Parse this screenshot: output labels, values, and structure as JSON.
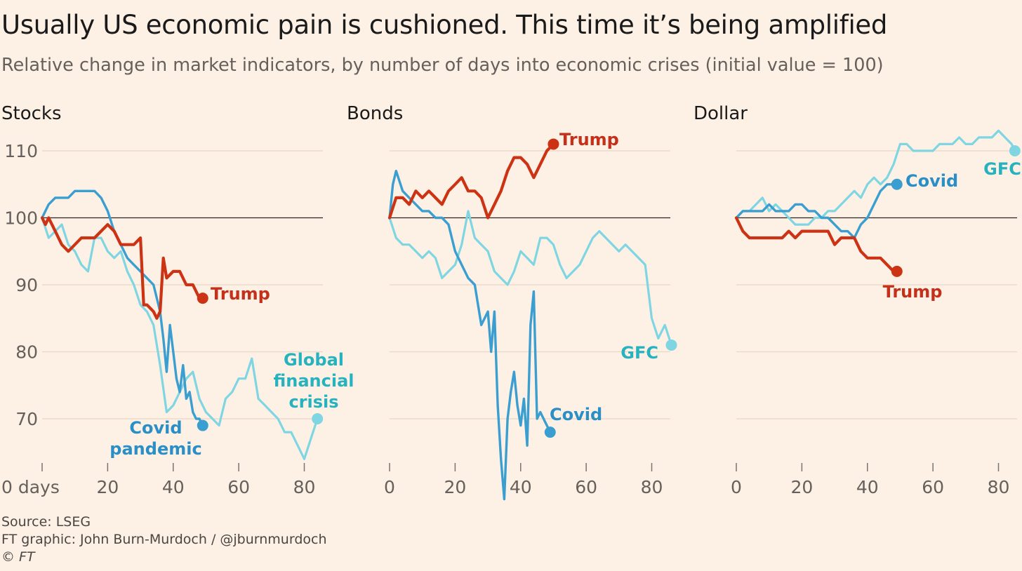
{
  "header": {
    "title": "Usually US economic pain is cushioned. This time it’s being amplified",
    "subtitle": "Relative change in market indicators, by number of days into economic crises (initial value = 100)"
  },
  "footer": {
    "source": "Source: LSEG",
    "credit": "FT graphic: John Burn-Murdoch / @jburnmurdoch",
    "copyright": "© FT"
  },
  "colors": {
    "trump": "#cc3314",
    "covid": "#3a9fd0",
    "gfc": "#7fd6e2",
    "gfc_label": "#27b2bf",
    "covid_label": "#2a8fc6",
    "trump_label": "#c4301a",
    "grid": "#ead7c8",
    "baseline": "#2b2623",
    "tick_text": "#66605c"
  },
  "chart_data": [
    {
      "type": "line",
      "title": "Stocks",
      "xlim": [
        0,
        85
      ],
      "ylim": [
        63,
        112
      ],
      "xticks": [
        0,
        20,
        40,
        60,
        80
      ],
      "xtick_labels": [
        "0 days",
        "20",
        "40",
        "60",
        "80"
      ],
      "yticks": [
        70,
        80,
        90,
        100,
        110
      ],
      "ytick_labels": [
        "70",
        "80",
        "90",
        "100",
        "110"
      ],
      "baseline": 100,
      "grid": true,
      "series": [
        {
          "key": "gfc",
          "name": "Global financial crisis",
          "label_lines": [
            "Global",
            "financial",
            "crisis"
          ],
          "x": [
            0,
            2,
            4,
            6,
            8,
            10,
            12,
            14,
            16,
            18,
            20,
            22,
            24,
            26,
            28,
            30,
            32,
            34,
            36,
            38,
            40,
            42,
            44,
            46,
            48,
            50,
            52,
            54,
            56,
            58,
            60,
            62,
            64,
            66,
            68,
            70,
            72,
            74,
            76,
            78,
            80,
            82,
            84
          ],
          "y": [
            100,
            97,
            98,
            99,
            96,
            95,
            93,
            92,
            97,
            97,
            95,
            94,
            95,
            92,
            90,
            87,
            86,
            84,
            78,
            71,
            72,
            74,
            76,
            77,
            73,
            71,
            70,
            69,
            73,
            74,
            76,
            76,
            79,
            73,
            72,
            71,
            70,
            68,
            68,
            66,
            64,
            67,
            70
          ]
        },
        {
          "key": "covid",
          "name": "Covid pandemic",
          "label_lines": [
            "Covid",
            "pandemic"
          ],
          "x": [
            0,
            2,
            4,
            6,
            8,
            10,
            12,
            14,
            16,
            18,
            20,
            22,
            24,
            26,
            28,
            30,
            32,
            34,
            36,
            37,
            38,
            39,
            40,
            41,
            42,
            43,
            44,
            45,
            46,
            47,
            48,
            49
          ],
          "y": [
            100,
            102,
            103,
            103,
            103,
            104,
            104,
            104,
            104,
            103,
            101,
            98,
            96,
            94,
            93,
            92,
            91,
            90,
            86,
            82,
            77,
            84,
            80,
            76,
            74,
            78,
            73,
            74,
            71,
            70,
            70,
            69
          ]
        },
        {
          "key": "trump",
          "name": "Trump",
          "label_lines": [
            "Trump"
          ],
          "x": [
            0,
            1,
            2,
            4,
            6,
            8,
            10,
            12,
            14,
            16,
            18,
            20,
            22,
            24,
            26,
            28,
            30,
            31,
            32,
            34,
            35,
            36,
            37,
            38,
            40,
            42,
            44,
            46,
            48,
            49
          ],
          "y": [
            100,
            99,
            100,
            98,
            96,
            95,
            96,
            97,
            97,
            97,
            98,
            99,
            98,
            96,
            96,
            96,
            97,
            87,
            87,
            86,
            85,
            86,
            94,
            91,
            92,
            92,
            90,
            90,
            88,
            88
          ]
        }
      ]
    },
    {
      "type": "line",
      "title": "Bonds",
      "xlim": [
        0,
        85
      ],
      "ylim": [
        63,
        112
      ],
      "xticks": [
        0,
        20,
        40,
        60,
        80
      ],
      "xtick_labels": [
        "0",
        "20",
        "40",
        "60",
        "80"
      ],
      "baseline": 100,
      "grid": true,
      "series": [
        {
          "key": "gfc",
          "name": "GFC",
          "label_lines": [
            "GFC"
          ],
          "x": [
            0,
            2,
            4,
            6,
            8,
            10,
            12,
            14,
            16,
            18,
            20,
            22,
            24,
            26,
            28,
            30,
            32,
            34,
            36,
            38,
            40,
            42,
            44,
            46,
            48,
            50,
            52,
            54,
            56,
            58,
            60,
            62,
            64,
            66,
            68,
            70,
            72,
            74,
            76,
            78,
            80,
            82,
            84,
            86
          ],
          "y": [
            100,
            97,
            96,
            96,
            95,
            94,
            95,
            94,
            91,
            92,
            93,
            96,
            101,
            97,
            96,
            95,
            92,
            91,
            90,
            92,
            95,
            94,
            93,
            97,
            97,
            96,
            93,
            91,
            92,
            93,
            95,
            97,
            98,
            97,
            96,
            95,
            96,
            95,
            94,
            93,
            85,
            82,
            84,
            81
          ]
        },
        {
          "key": "covid",
          "name": "Covid",
          "label_lines": [
            "Covid"
          ],
          "x": [
            0,
            1,
            2,
            4,
            6,
            8,
            10,
            12,
            14,
            16,
            18,
            20,
            22,
            24,
            26,
            28,
            30,
            31,
            32,
            33,
            34,
            35,
            36,
            37,
            38,
            39,
            40,
            41,
            42,
            43,
            44,
            45,
            46,
            47,
            48,
            49
          ],
          "y": [
            100,
            105,
            107,
            104,
            103,
            102,
            101,
            101,
            100,
            100,
            99,
            95,
            93,
            91,
            90,
            84,
            86,
            80,
            86,
            72,
            64,
            58,
            70,
            74,
            77,
            72,
            69,
            73,
            66,
            84,
            89,
            70,
            71,
            70,
            69,
            68
          ]
        },
        {
          "key": "trump",
          "name": "Trump",
          "label_lines": [
            "Trump"
          ],
          "x": [
            0,
            2,
            4,
            6,
            8,
            10,
            12,
            14,
            16,
            18,
            20,
            22,
            24,
            26,
            28,
            30,
            32,
            34,
            36,
            38,
            40,
            42,
            44,
            46,
            48,
            50
          ],
          "y": [
            100,
            103,
            103,
            102,
            104,
            103,
            104,
            103,
            102,
            104,
            105,
            106,
            104,
            104,
            103,
            100,
            102,
            104,
            107,
            109,
            109,
            108,
            106,
            108,
            110,
            111
          ]
        }
      ]
    },
    {
      "type": "line",
      "title": "Dollar",
      "xlim": [
        0,
        85
      ],
      "ylim": [
        63,
        112
      ],
      "xticks": [
        0,
        20,
        40,
        60,
        80
      ],
      "xtick_labels": [
        "0",
        "20",
        "40",
        "60",
        "80"
      ],
      "baseline": 100,
      "grid": true,
      "series": [
        {
          "key": "gfc",
          "name": "GFC",
          "label_lines": [
            "GFC"
          ],
          "x": [
            0,
            2,
            4,
            6,
            8,
            10,
            12,
            14,
            16,
            18,
            20,
            22,
            24,
            26,
            28,
            30,
            32,
            34,
            36,
            38,
            40,
            42,
            44,
            46,
            48,
            50,
            52,
            54,
            56,
            58,
            60,
            62,
            64,
            66,
            68,
            70,
            72,
            74,
            76,
            78,
            80,
            82,
            84,
            85
          ],
          "y": [
            100,
            101,
            101,
            102,
            103,
            101,
            102,
            101,
            100,
            99,
            99,
            99,
            100,
            100,
            101,
            101,
            102,
            103,
            104,
            103,
            105,
            106,
            105,
            106,
            108,
            111,
            111,
            110,
            110,
            110,
            110,
            111,
            111,
            111,
            112,
            111,
            111,
            112,
            112,
            112,
            113,
            112,
            111,
            110
          ]
        },
        {
          "key": "covid",
          "name": "Covid",
          "label_lines": [
            "Covid"
          ],
          "x": [
            0,
            2,
            4,
            6,
            8,
            10,
            12,
            14,
            16,
            18,
            20,
            22,
            24,
            26,
            28,
            30,
            32,
            34,
            36,
            38,
            40,
            42,
            44,
            46,
            48,
            49
          ],
          "y": [
            100,
            101,
            101,
            101,
            101,
            102,
            101,
            101,
            101,
            102,
            102,
            101,
            101,
            100,
            100,
            99,
            98,
            98,
            97,
            99,
            100,
            102,
            104,
            105,
            105,
            105
          ]
        },
        {
          "key": "trump",
          "name": "Trump",
          "label_lines": [
            "Trump"
          ],
          "x": [
            0,
            2,
            4,
            6,
            8,
            10,
            12,
            14,
            16,
            18,
            20,
            22,
            24,
            26,
            28,
            30,
            32,
            34,
            36,
            38,
            40,
            42,
            44,
            46,
            48,
            49
          ],
          "y": [
            100,
            98,
            97,
            97,
            97,
            97,
            97,
            97,
            98,
            97,
            98,
            98,
            98,
            98,
            98,
            96,
            97,
            97,
            97,
            95,
            94,
            94,
            94,
            93,
            92,
            92
          ]
        }
      ]
    }
  ]
}
